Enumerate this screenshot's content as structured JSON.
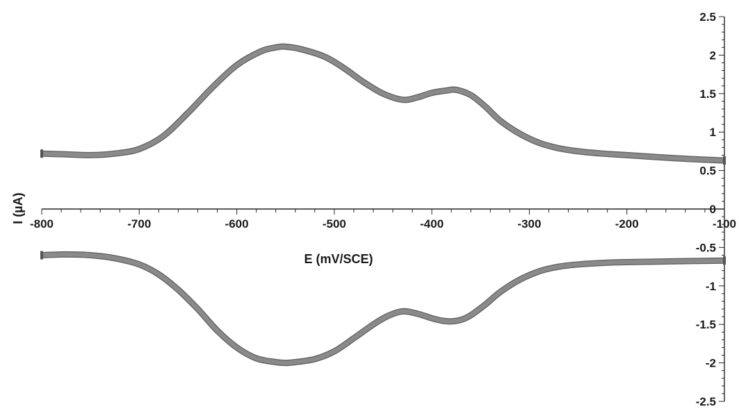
{
  "chart_data": {
    "type": "line",
    "xlabel": "E (mV/SCE)",
    "ylabel": "I (µA)",
    "xlim": [
      -800,
      -100
    ],
    "ylim": [
      -2.5,
      2.5
    ],
    "x_ticks": [
      -800,
      -700,
      -600,
      -500,
      -400,
      -300,
      -200,
      -100
    ],
    "y_ticks": [
      -2.5,
      -2,
      -1.5,
      -1,
      -0.5,
      0,
      0.5,
      1,
      1.5,
      2,
      2.5
    ],
    "x_tick_labels": [
      "-800",
      "-700",
      "-600",
      "-500",
      "-400",
      "-300",
      "-200",
      "-100"
    ],
    "y_tick_labels": [
      "-2.5",
      "-2",
      "-1.5",
      "-1",
      "-0.5",
      "0",
      "0.5",
      "1",
      "1.5",
      "2",
      "2.5"
    ],
    "grid": false,
    "line_color": "#8a8a8a",
    "series": [
      {
        "x": [
          -800,
          -775,
          -750,
          -725,
          -700,
          -675,
          -650,
          -625,
          -600,
          -575,
          -560,
          -550,
          -535,
          -510,
          -490,
          -470,
          -450,
          -430,
          -415,
          -400,
          -385,
          -375,
          -360,
          -345,
          -330,
          -310,
          -290,
          -270,
          -250,
          -225,
          -200,
          -150,
          -100
        ],
        "y": [
          0.72,
          0.71,
          0.7,
          0.72,
          0.78,
          0.95,
          1.25,
          1.58,
          1.87,
          2.05,
          2.1,
          2.11,
          2.08,
          1.98,
          1.83,
          1.65,
          1.5,
          1.42,
          1.45,
          1.51,
          1.54,
          1.55,
          1.48,
          1.33,
          1.15,
          0.98,
          0.86,
          0.79,
          0.75,
          0.72,
          0.7,
          0.66,
          0.63
        ]
      },
      {
        "x": [
          -800,
          -775,
          -750,
          -725,
          -700,
          -680,
          -660,
          -640,
          -620,
          -600,
          -580,
          -560,
          -550,
          -540,
          -520,
          -500,
          -480,
          -460,
          -445,
          -430,
          -415,
          -400,
          -390,
          -380,
          -370,
          -360,
          -345,
          -330,
          -310,
          -290,
          -270,
          -250,
          -225,
          -200,
          -150,
          -100
        ],
        "y": [
          -0.6,
          -0.59,
          -0.6,
          -0.64,
          -0.72,
          -0.85,
          -1.05,
          -1.3,
          -1.58,
          -1.8,
          -1.94,
          -1.99,
          -2.0,
          -1.99,
          -1.95,
          -1.85,
          -1.68,
          -1.5,
          -1.39,
          -1.33,
          -1.36,
          -1.42,
          -1.45,
          -1.46,
          -1.44,
          -1.38,
          -1.24,
          -1.08,
          -0.92,
          -0.81,
          -0.75,
          -0.72,
          -0.7,
          -0.69,
          -0.68,
          -0.67
        ]
      }
    ]
  }
}
